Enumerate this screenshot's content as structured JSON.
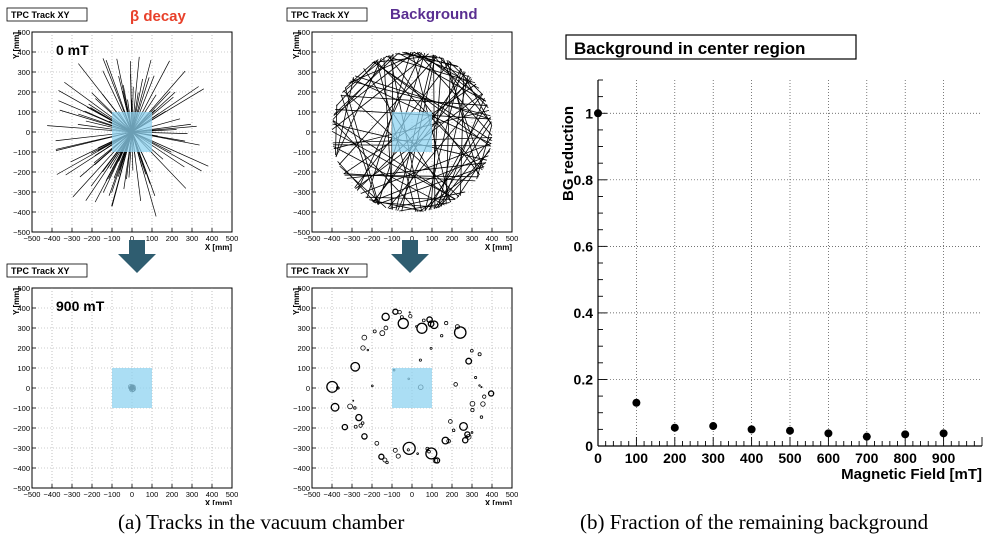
{
  "labels": {
    "beta_decay": "β decay",
    "background": "Background",
    "arrow_color": "#2f5d70",
    "beta_color": "#e8402a",
    "background_color": "#5a2f91",
    "region_color": "#8fd3f0"
  },
  "captions": {
    "a": "(a) Tracks in the vacuum chamber",
    "b": "(b) Fraction of the remaining background"
  },
  "chart_data": [
    {
      "type": "scatter",
      "panel": "beta-0mT",
      "title": "TPC Track XY",
      "annotation": "0 mT",
      "xlabel": "X [mm]",
      "ylabel": "Y [mm]",
      "xlim": [
        -500,
        500
      ],
      "ylim": [
        -500,
        500
      ],
      "ticks": [
        "−500",
        "−400",
        "−300",
        "−200",
        "−100",
        "0",
        "100",
        "200",
        "300",
        "400",
        "500"
      ],
      "grid": true,
      "center_region": [
        -100,
        100,
        -100,
        100
      ],
      "content": "straight tracks radiating from the origin"
    },
    {
      "type": "scatter",
      "panel": "background-0mT",
      "title": "TPC Track XY",
      "annotation": "",
      "xlabel": "X [mm]",
      "ylabel": "Y [mm]",
      "xlim": [
        -500,
        500
      ],
      "ylim": [
        -500,
        500
      ],
      "ticks": [
        "−500",
        "−400",
        "−300",
        "−200",
        "−100",
        "0",
        "100",
        "200",
        "300",
        "400",
        "500"
      ],
      "grid": true,
      "center_region": [
        -100,
        100,
        -100,
        100
      ],
      "content": "random straight chords crossing a circle of radius ~400 mm"
    },
    {
      "type": "scatter",
      "panel": "beta-900mT",
      "title": "TPC Track XY",
      "annotation": "900 mT",
      "xlabel": "X [mm]",
      "ylabel": "Y [mm]",
      "xlim": [
        -500,
        500
      ],
      "ylim": [
        -500,
        500
      ],
      "ticks": [
        "−500",
        "−400",
        "−300",
        "−200",
        "−100",
        "0",
        "100",
        "200",
        "300",
        "400",
        "500"
      ],
      "grid": true,
      "center_region": [
        -100,
        100,
        -100,
        100
      ],
      "content": "small spiral cluster at the origin"
    },
    {
      "type": "scatter",
      "panel": "background-900mT",
      "title": "TPC Track XY",
      "annotation": "",
      "xlabel": "X [mm]",
      "ylabel": "Y [mm]",
      "xlim": [
        -500,
        500
      ],
      "ylim": [
        -500,
        500
      ],
      "ticks": [
        "−500",
        "−400",
        "−300",
        "−200",
        "−100",
        "0",
        "100",
        "200",
        "300",
        "400",
        "500"
      ],
      "grid": true,
      "center_region": [
        -100,
        100,
        -100,
        100
      ],
      "content": "small curled tracks distributed near the circle boundary"
    },
    {
      "type": "scatter",
      "panel": "bg-reduction",
      "title": "Background in center region",
      "xlabel": "Magnetic Field [mT]",
      "ylabel": "BG reduction",
      "xlim": [
        0,
        1000
      ],
      "ylim": [
        0,
        1.1
      ],
      "xticks": [
        0,
        100,
        200,
        300,
        400,
        500,
        600,
        700,
        800,
        900
      ],
      "yticks": [
        0,
        0.2,
        0.4,
        0.6,
        0.8,
        1
      ],
      "ytick_labels": [
        "0",
        "0.2",
        "0.4",
        "0.6",
        "0.8",
        "1"
      ],
      "grid": true,
      "x": [
        0,
        100,
        200,
        300,
        400,
        500,
        600,
        700,
        800,
        900
      ],
      "y": [
        1.0,
        0.13,
        0.055,
        0.06,
        0.05,
        0.046,
        0.038,
        0.028,
        0.035,
        0.038
      ]
    }
  ]
}
